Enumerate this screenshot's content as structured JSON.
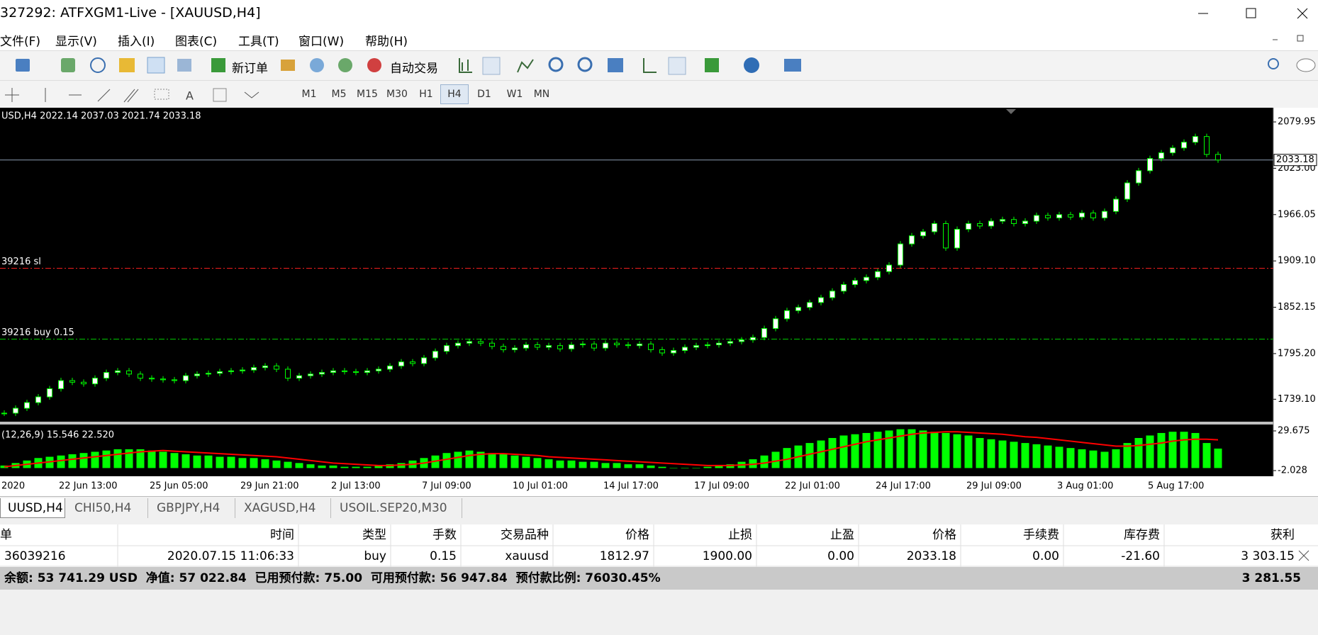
{
  "window": {
    "title": "327292: ATFXGM1-Live - [XAUUSD,H4]"
  },
  "menu": [
    "文件(F)",
    "显示(V)",
    "插入(I)",
    "图表(C)",
    "工具(T)",
    "窗口(W)",
    "帮助(H)"
  ],
  "toolbar": {
    "new_order": "新订单",
    "auto_trading": "自动交易"
  },
  "timeframes": [
    "M1",
    "M5",
    "M15",
    "M30",
    "H1",
    "H4",
    "D1",
    "W1",
    "MN"
  ],
  "chart_data": [
    {
      "type": "candlestick",
      "title": "USD,H4  2022.14 2037.03 2021.74 2033.18",
      "color": "#00ff00",
      "up_color": "#ffffff",
      "down_color": "#000000",
      "values": [
        1722,
        1728,
        1735,
        1742,
        1752,
        1762,
        1760,
        1758,
        1765,
        1772,
        1774,
        1770,
        1765,
        1764,
        1763,
        1762,
        1768,
        1770,
        1771,
        1773,
        1774,
        1775,
        1778,
        1780,
        1776,
        1765,
        1768,
        1770,
        1772,
        1774,
        1773,
        1772,
        1774,
        1776,
        1780,
        1785,
        1783,
        1790,
        1798,
        1805,
        1808,
        1810,
        1808,
        1804,
        1800,
        1802,
        1806,
        1803,
        1805,
        1801,
        1806,
        1807,
        1802,
        1808,
        1806,
        1805,
        1807,
        1800,
        1796,
        1799,
        1803,
        1805,
        1806,
        1808,
        1810,
        1812,
        1815,
        1826,
        1838,
        1848,
        1852,
        1858,
        1864,
        1872,
        1880,
        1885,
        1889,
        1896,
        1904,
        1930,
        1940,
        1945,
        1955,
        1925,
        1948,
        1955,
        1952,
        1958,
        1960,
        1955,
        1958,
        1965,
        1962,
        1966,
        1963,
        1968,
        1962,
        1970,
        1985,
        2005,
        2020,
        2035,
        2042,
        2048,
        2055,
        2062,
        2040,
        2033.18
      ],
      "ylim": [
        1711.5,
        2097.4
      ],
      "yticks": [
        2079.95,
        {
          "value": 2023,
          "label": "2023.00"
        },
        {
          "value": 1966.05,
          "label": "1966.05"
        },
        {
          "value": 1909.1,
          "label": "1909.10"
        },
        1852.15,
        {
          "value": 1795.2,
          "label": "1795.20"
        },
        {
          "value": 1739.1,
          "label": "1739.10"
        }
      ],
      "levels": [
        {
          "label": "39216 sl",
          "value": 1900,
          "color": "#ff2020"
        },
        {
          "label": "39216 buy 0.15",
          "value": 1812.97,
          "color": "#00c800"
        }
      ],
      "xtick_labels": [
        "2020",
        "22 Jun 13:00",
        "25 Jun 05:00",
        "29 Jun 21:00",
        "2 Jul 13:00",
        "7 Jul 09:00",
        "10 Jul 01:00",
        "14 Jul 17:00",
        "17 Jul 09:00",
        "22 Jul 01:00",
        "24 Jul 17:00",
        "29 Jul 09:00",
        "3 Aug 01:00",
        "5 Aug 17:00"
      ]
    },
    {
      "type": "bar",
      "title": "(12,26,9) 15.546 22.520",
      "series": [
        {
          "color": "#00ff00",
          "values": [
            2,
            4,
            6,
            8,
            9,
            10,
            11,
            12,
            13,
            14,
            15,
            15,
            15,
            14,
            13,
            12,
            11,
            10,
            10,
            9,
            9,
            8,
            8,
            7,
            6,
            5,
            4,
            3,
            2,
            2,
            1,
            1,
            1,
            2,
            3,
            4,
            6,
            8,
            10,
            12,
            13,
            14,
            13,
            12,
            11,
            10,
            9,
            8,
            7,
            6,
            6,
            5,
            5,
            4,
            4,
            3,
            3,
            2,
            1,
            0,
            0,
            0,
            1,
            2,
            3,
            5,
            7,
            10,
            13,
            16,
            18,
            20,
            22,
            24,
            26,
            27,
            28,
            29,
            30,
            31,
            31,
            30,
            29,
            28,
            27,
            26,
            24,
            23,
            22,
            21,
            20,
            19,
            18,
            17,
            16,
            15,
            14,
            13,
            15,
            20,
            24,
            26,
            28,
            29,
            29,
            28,
            20,
            15.546
          ]
        },
        {
          "color": "#ff0000",
          "type": "line",
          "values": [
            1,
            2,
            3,
            4,
            5,
            6,
            7,
            8,
            9,
            10,
            11,
            12,
            13,
            13.5,
            14,
            13.5,
            13,
            12.5,
            12,
            11.5,
            11,
            10.5,
            10,
            9.5,
            9,
            8,
            7,
            6,
            5,
            4,
            3.5,
            3,
            2.5,
            2,
            2,
            2.5,
            3,
            4,
            5.5,
            7,
            8.5,
            10,
            11,
            11.5,
            11.5,
            11,
            10.5,
            10,
            9,
            8.5,
            8,
            7.5,
            7,
            6.5,
            6,
            5.5,
            5,
            4.5,
            4,
            3.5,
            3,
            2.5,
            2,
            2,
            2,
            2.5,
            3,
            4,
            5.5,
            7,
            9,
            11,
            13,
            15,
            17,
            19,
            21,
            22.5,
            24,
            25.5,
            27,
            28,
            28.5,
            29,
            29,
            28.5,
            28,
            27.5,
            27,
            26,
            25,
            24.5,
            23.5,
            22.5,
            21.5,
            20.5,
            19.5,
            18.5,
            17.5,
            17.5,
            18,
            19,
            20,
            21.5,
            22.5,
            23,
            23,
            22.52
          ]
        }
      ],
      "ylim": [
        -6.56,
        34.77
      ],
      "yticks": [
        29.675,
        -2.028
      ]
    }
  ],
  "tabs": [
    "UUSD,H4",
    "CHI50,H4",
    "GBPJPY,H4",
    "XAGUSD,H4",
    "USOIL.SEP20,M30"
  ],
  "table": {
    "headers": [
      "单",
      "时间",
      "类型",
      "手数",
      "交易品种",
      "价格",
      "止损",
      "止盈",
      "价格",
      "手续费",
      "库存费",
      "获利"
    ],
    "rows": [
      [
        "36039216",
        "2020.07.15 11:06:33",
        "buy",
        "0.15",
        "xauusd",
        "1812.97",
        "1900.00",
        "0.00",
        "2033.18",
        "0.00",
        "-21.60",
        "3 303.15"
      ]
    ]
  },
  "status": {
    "account": "余额: 53 741.29 USD  净值: 57 022.84  已用预付款: 75.00  可用预付款: 56 947.84  预付款比例: 76030.45%",
    "profit": "3 281.55"
  }
}
